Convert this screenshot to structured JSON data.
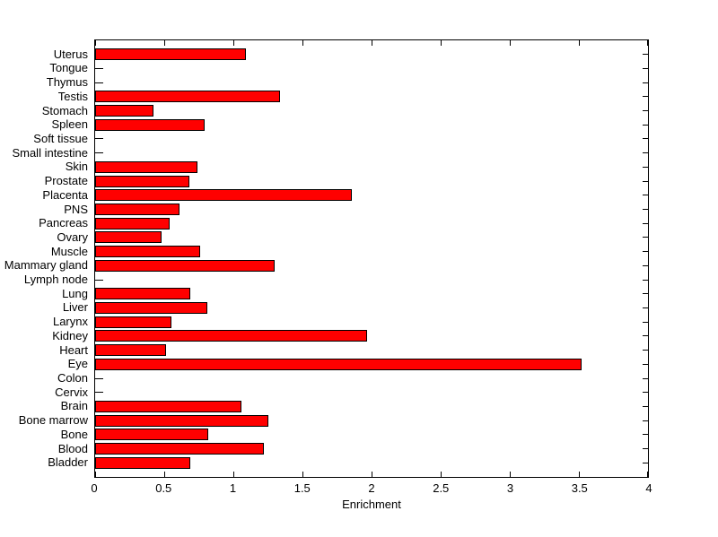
{
  "chart_data": {
    "type": "bar",
    "orientation": "horizontal",
    "title": "",
    "xlabel": "Enrichment",
    "ylabel": "",
    "xlim": [
      0,
      4
    ],
    "x_tick_values": [
      0,
      0.5,
      1,
      1.5,
      2,
      2.5,
      3,
      3.5,
      4
    ],
    "x_tick_labels": [
      "0",
      "0.5",
      "1",
      "1.5",
      "2",
      "2.5",
      "3",
      "3.5",
      "4"
    ],
    "grid": false,
    "legend": null,
    "categories_top_to_bottom": [
      "Uterus",
      "Tongue",
      "Thymus",
      "Testis",
      "Stomach",
      "Spleen",
      "Soft tissue",
      "Small intestine",
      "Skin",
      "Prostate",
      "Placenta",
      "PNS",
      "Pancreas",
      "Ovary",
      "Muscle",
      "Mammary gland",
      "Lymph node",
      "Lung",
      "Liver",
      "Larynx",
      "Kidney",
      "Heart",
      "Eye",
      "Colon",
      "Cervix",
      "Brain",
      "Bone marrow",
      "Bone",
      "Blood",
      "Bladder"
    ],
    "values": [
      1.09,
      0,
      0,
      1.34,
      0.42,
      0.79,
      0,
      0,
      0.74,
      0.68,
      1.86,
      0.61,
      0.54,
      0.48,
      0.76,
      1.3,
      0,
      0.69,
      0.81,
      0.55,
      1.97,
      0.51,
      3.52,
      0,
      0,
      1.06,
      1.25,
      0.82,
      1.22,
      0.69
    ],
    "colors": {
      "bar_fill": "#ff0000",
      "bar_edge": "#000000",
      "axis": "#000000",
      "background": "#ffffff",
      "text": "#000000"
    }
  }
}
